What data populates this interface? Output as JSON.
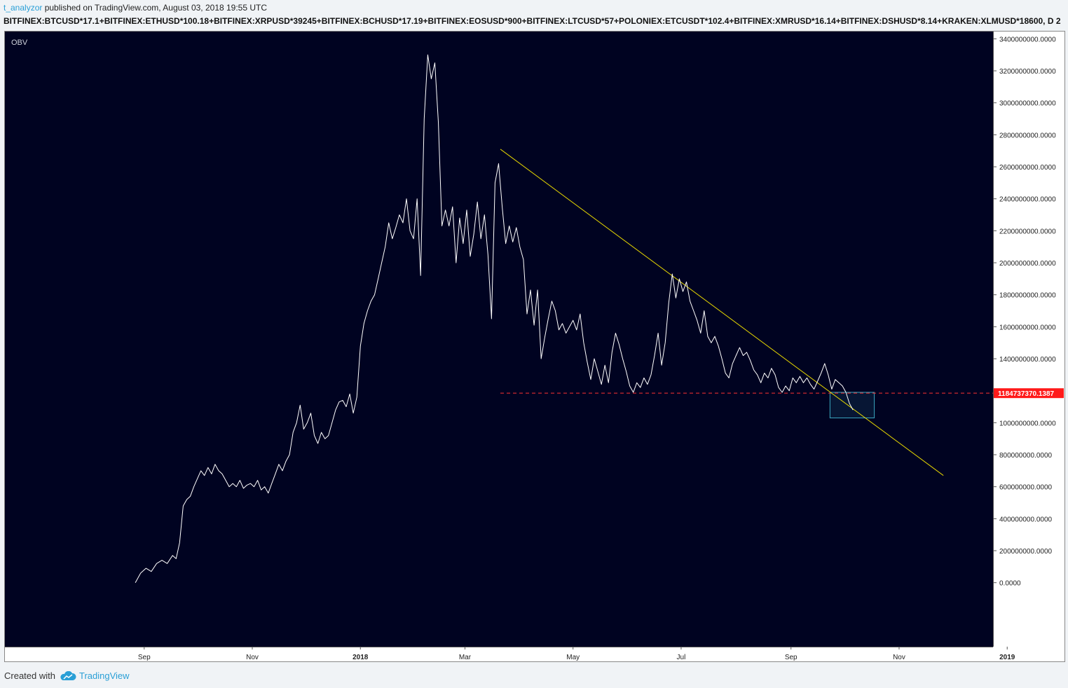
{
  "header": {
    "user": "t_analyzor",
    "published": " published on TradingView.com, August 03, 2018 19:55 UTC"
  },
  "symbol_line": "BITFINEX:BTCUSD*17.1+BITFINEX:ETHUSD*100.18+BITFINEX:XRPUSD*39245+BITFINEX:BCHUSD*17.19+BITFINEX:EOSUSD*900+BITFINEX:LTCUSD*57+POLONIEX:ETCUSDT*102.4+BITFINEX:XMRUSD*16.14+BITFINEX:DSHUSD*8.14+KRAKEN:XLMUSD*18600, D  2",
  "footer": {
    "created_with": "Created with",
    "brand": "TradingView"
  },
  "colors": {
    "background": "#000321",
    "line": "#ffffff",
    "trendline": "#e5d700",
    "hline": "#ff3333",
    "box": "#3aa7c0",
    "price_tag": "#ff1a1a"
  },
  "chart_data": {
    "type": "line",
    "indicator_label": "OBV",
    "x_ticks": [
      "Sep",
      "Nov",
      "2018",
      "Mar",
      "May",
      "Jul",
      "Sep",
      "Nov",
      "2019"
    ],
    "x_tick_bold": [
      "2018",
      "2019"
    ],
    "y_ticks": [
      "0.0000",
      "200000000.0000",
      "400000000.0000",
      "600000000.0000",
      "800000000.0000",
      "1000000000.0000",
      "1200000000.0000",
      "1400000000.0000",
      "1600000000.0000",
      "1800000000.0000",
      "2000000000.0000",
      "2200000000.0000",
      "2400000000.0000",
      "2600000000.0000",
      "2800000000.0000",
      "3000000000.0000",
      "3200000000.0000",
      "3400000000.0000"
    ],
    "ylim": [
      -400000000,
      3450000000
    ],
    "xlim_days": [
      -48,
      510
    ],
    "x_origin_label": "Aug 2017",
    "current_value_label": "1184737370.1387",
    "current_value": 1184737370,
    "series": [
      {
        "points": [
          [
            26,
            0
          ],
          [
            29,
            60000000
          ],
          [
            32,
            90000000
          ],
          [
            35,
            70000000
          ],
          [
            38,
            120000000
          ],
          [
            41,
            140000000
          ],
          [
            44,
            120000000
          ],
          [
            47,
            170000000
          ],
          [
            49,
            150000000
          ],
          [
            51,
            250000000
          ],
          [
            53,
            480000000
          ],
          [
            55,
            520000000
          ],
          [
            57,
            540000000
          ],
          [
            59,
            600000000
          ],
          [
            61,
            650000000
          ],
          [
            63,
            700000000
          ],
          [
            65,
            670000000
          ],
          [
            67,
            720000000
          ],
          [
            69,
            680000000
          ],
          [
            71,
            740000000
          ],
          [
            73,
            700000000
          ],
          [
            75,
            680000000
          ],
          [
            77,
            640000000
          ],
          [
            79,
            600000000
          ],
          [
            81,
            620000000
          ],
          [
            83,
            600000000
          ],
          [
            85,
            640000000
          ],
          [
            87,
            590000000
          ],
          [
            89,
            610000000
          ],
          [
            91,
            620000000
          ],
          [
            93,
            600000000
          ],
          [
            95,
            640000000
          ],
          [
            97,
            580000000
          ],
          [
            99,
            600000000
          ],
          [
            101,
            560000000
          ],
          [
            103,
            620000000
          ],
          [
            105,
            680000000
          ],
          [
            107,
            740000000
          ],
          [
            109,
            700000000
          ],
          [
            111,
            760000000
          ],
          [
            113,
            800000000
          ],
          [
            115,
            940000000
          ],
          [
            117,
            1000000000
          ],
          [
            119,
            1110000000
          ],
          [
            121,
            960000000
          ],
          [
            123,
            1000000000
          ],
          [
            125,
            1060000000
          ],
          [
            127,
            920000000
          ],
          [
            129,
            870000000
          ],
          [
            131,
            940000000
          ],
          [
            133,
            900000000
          ],
          [
            135,
            920000000
          ],
          [
            137,
            1000000000
          ],
          [
            139,
            1080000000
          ],
          [
            141,
            1130000000
          ],
          [
            143,
            1140000000
          ],
          [
            145,
            1100000000
          ],
          [
            147,
            1180000000
          ],
          [
            149,
            1060000000
          ],
          [
            151,
            1160000000
          ],
          [
            153,
            1480000000
          ],
          [
            155,
            1620000000
          ],
          [
            157,
            1700000000
          ],
          [
            159,
            1760000000
          ],
          [
            161,
            1800000000
          ],
          [
            163,
            1900000000
          ],
          [
            165,
            2000000000
          ],
          [
            167,
            2100000000
          ],
          [
            169,
            2250000000
          ],
          [
            171,
            2150000000
          ],
          [
            173,
            2220000000
          ],
          [
            175,
            2300000000
          ],
          [
            177,
            2250000000
          ],
          [
            179,
            2400000000
          ],
          [
            181,
            2200000000
          ],
          [
            183,
            2150000000
          ],
          [
            185,
            2400000000
          ],
          [
            187,
            1920000000
          ],
          [
            189,
            2900000000
          ],
          [
            191,
            3300000000
          ],
          [
            193,
            3150000000
          ],
          [
            195,
            3250000000
          ],
          [
            197,
            2880000000
          ],
          [
            199,
            2230000000
          ],
          [
            201,
            2330000000
          ],
          [
            203,
            2230000000
          ],
          [
            205,
            2350000000
          ],
          [
            207,
            2000000000
          ],
          [
            209,
            2280000000
          ],
          [
            211,
            2120000000
          ],
          [
            213,
            2330000000
          ],
          [
            215,
            2040000000
          ],
          [
            217,
            2180000000
          ],
          [
            219,
            2380000000
          ],
          [
            221,
            2150000000
          ],
          [
            223,
            2300000000
          ],
          [
            225,
            2050000000
          ],
          [
            227,
            1650000000
          ],
          [
            229,
            2500000000
          ],
          [
            231,
            2620000000
          ],
          [
            233,
            2350000000
          ],
          [
            235,
            2120000000
          ],
          [
            237,
            2230000000
          ],
          [
            239,
            2130000000
          ],
          [
            241,
            2220000000
          ],
          [
            243,
            2100000000
          ],
          [
            245,
            2020000000
          ],
          [
            247,
            1680000000
          ],
          [
            249,
            1830000000
          ],
          [
            251,
            1610000000
          ],
          [
            253,
            1830000000
          ],
          [
            255,
            1400000000
          ],
          [
            257,
            1530000000
          ],
          [
            259,
            1650000000
          ],
          [
            261,
            1760000000
          ],
          [
            263,
            1700000000
          ],
          [
            265,
            1580000000
          ],
          [
            267,
            1620000000
          ],
          [
            269,
            1560000000
          ],
          [
            271,
            1600000000
          ],
          [
            273,
            1640000000
          ],
          [
            275,
            1580000000
          ],
          [
            277,
            1680000000
          ],
          [
            279,
            1500000000
          ],
          [
            281,
            1380000000
          ],
          [
            283,
            1270000000
          ],
          [
            285,
            1400000000
          ],
          [
            287,
            1320000000
          ],
          [
            289,
            1240000000
          ],
          [
            291,
            1360000000
          ],
          [
            293,
            1250000000
          ],
          [
            295,
            1440000000
          ],
          [
            297,
            1560000000
          ],
          [
            299,
            1490000000
          ],
          [
            301,
            1400000000
          ],
          [
            303,
            1320000000
          ],
          [
            305,
            1230000000
          ],
          [
            307,
            1190000000
          ],
          [
            309,
            1250000000
          ],
          [
            311,
            1220000000
          ],
          [
            313,
            1280000000
          ],
          [
            315,
            1240000000
          ],
          [
            317,
            1300000000
          ],
          [
            319,
            1420000000
          ],
          [
            321,
            1560000000
          ],
          [
            323,
            1360000000
          ],
          [
            325,
            1500000000
          ],
          [
            327,
            1750000000
          ],
          [
            329,
            1930000000
          ],
          [
            331,
            1780000000
          ],
          [
            333,
            1900000000
          ],
          [
            335,
            1820000000
          ],
          [
            337,
            1880000000
          ],
          [
            339,
            1760000000
          ],
          [
            341,
            1700000000
          ],
          [
            343,
            1640000000
          ],
          [
            345,
            1560000000
          ],
          [
            347,
            1700000000
          ],
          [
            349,
            1540000000
          ],
          [
            351,
            1500000000
          ],
          [
            353,
            1540000000
          ],
          [
            355,
            1480000000
          ],
          [
            357,
            1400000000
          ],
          [
            359,
            1310000000
          ],
          [
            361,
            1280000000
          ],
          [
            363,
            1370000000
          ],
          [
            365,
            1420000000
          ],
          [
            367,
            1470000000
          ],
          [
            369,
            1420000000
          ],
          [
            371,
            1440000000
          ],
          [
            373,
            1390000000
          ],
          [
            375,
            1330000000
          ],
          [
            377,
            1300000000
          ],
          [
            379,
            1250000000
          ],
          [
            381,
            1310000000
          ],
          [
            383,
            1280000000
          ],
          [
            385,
            1340000000
          ],
          [
            387,
            1300000000
          ],
          [
            389,
            1220000000
          ],
          [
            391,
            1190000000
          ],
          [
            393,
            1230000000
          ],
          [
            395,
            1200000000
          ],
          [
            397,
            1280000000
          ],
          [
            399,
            1250000000
          ],
          [
            401,
            1290000000
          ],
          [
            403,
            1250000000
          ],
          [
            405,
            1280000000
          ],
          [
            407,
            1240000000
          ],
          [
            409,
            1210000000
          ],
          [
            411,
            1260000000
          ],
          [
            413,
            1310000000
          ],
          [
            415,
            1370000000
          ],
          [
            417,
            1300000000
          ],
          [
            419,
            1210000000
          ],
          [
            421,
            1270000000
          ],
          [
            423,
            1250000000
          ],
          [
            425,
            1230000000
          ],
          [
            427,
            1190000000
          ],
          [
            429,
            1120000000
          ],
          [
            431,
            1080000000
          ]
        ]
      }
    ],
    "trendline": {
      "start": [
        232,
        2710000000
      ],
      "end": [
        482,
        670000000
      ]
    },
    "support_level": {
      "value": 1184737370,
      "from_day": 232
    },
    "highlight_box": {
      "x0": 418,
      "x1": 443,
      "y0": 1030000000,
      "y1": 1190000000
    }
  }
}
